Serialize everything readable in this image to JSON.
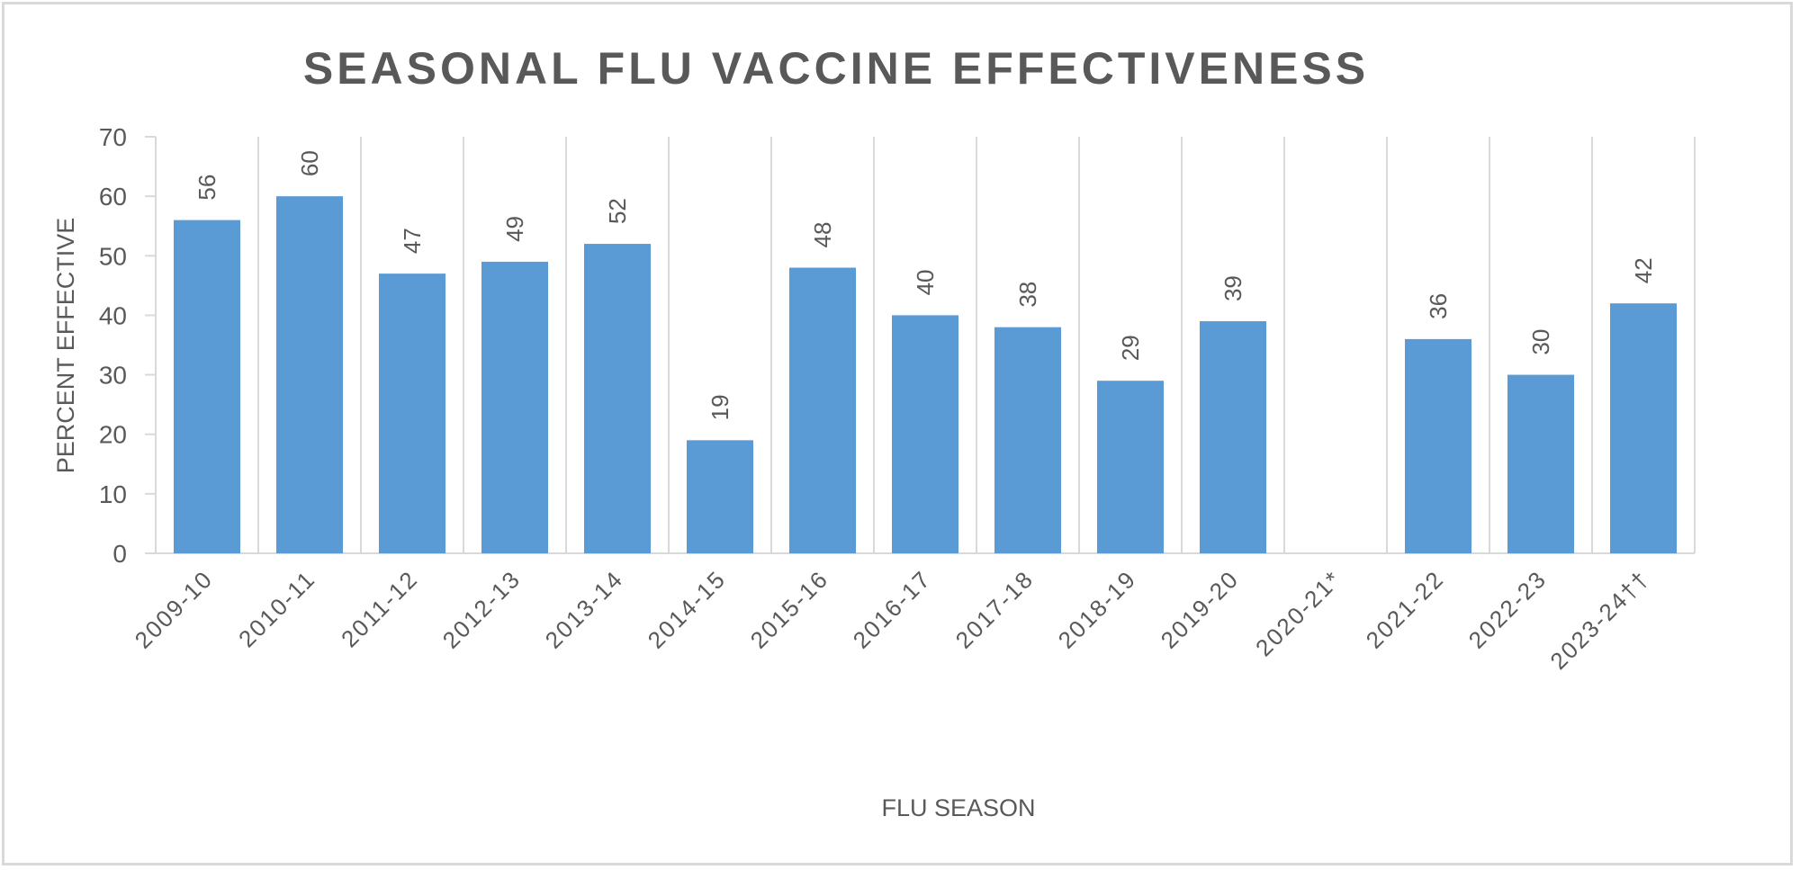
{
  "chart_data": {
    "type": "bar",
    "title": "SEASONAL FLU VACCINE EFFECTIVENESS",
    "xlabel": "FLU SEASON",
    "ylabel": "PERCENT EFFECTIVE",
    "ylim": [
      0,
      70
    ],
    "yticks": [
      0,
      10,
      20,
      30,
      40,
      50,
      60,
      70
    ],
    "grid": "vertical category separators",
    "legend": "none",
    "categories": [
      "2009-10",
      "2010-11",
      "2011-12",
      "2012-13",
      "2013-14",
      "2014-15",
      "2015-16",
      "2016-17",
      "2017-18",
      "2018-19",
      "2019-20",
      "2020-21*",
      "2021-22",
      "2022-23",
      "2023-24††"
    ],
    "values": [
      56,
      60,
      47,
      49,
      52,
      19,
      48,
      40,
      38,
      29,
      39,
      null,
      36,
      30,
      42
    ],
    "bar_color": "#5b9bd5"
  }
}
